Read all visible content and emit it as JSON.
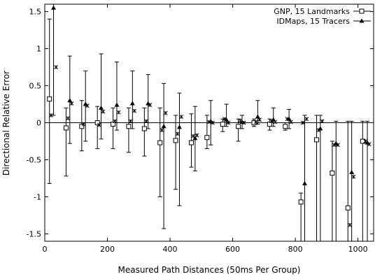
{
  "chart_data": {
    "type": "scatter",
    "title": "",
    "xlabel": "Measured Path Distances (50ms Per Group)",
    "ylabel": "Directional Relative Error",
    "xlim": [
      0,
      1050
    ],
    "ylim": [
      -1.6,
      1.6
    ],
    "x_ticks": [
      0,
      200,
      400,
      600,
      800,
      1000
    ],
    "x_tick_labels": [
      "0",
      "200",
      "400",
      "600",
      "800",
      "1000"
    ],
    "y_ticks": [
      -1.5,
      -1,
      -0.5,
      0,
      0.5,
      1,
      1.5
    ],
    "y_tick_labels": [
      "-1.5",
      "-1",
      "-0.5",
      "0",
      "0.5",
      "1",
      "1.5"
    ],
    "grid": false,
    "legend_position": "top-right",
    "zero_line": true,
    "series": [
      {
        "name": "GNP, 15 Landmarks",
        "marker": "square",
        "points": [
          {
            "x": 15,
            "y": 0.32,
            "lo": -0.82,
            "hi": 1.4
          },
          {
            "x": 68,
            "y": -0.07,
            "lo": -0.72,
            "hi": 0.2
          },
          {
            "x": 118,
            "y": -0.05,
            "lo": -0.38,
            "hi": 0.3
          },
          {
            "x": 168,
            "y": 0.0,
            "lo": -0.35,
            "hi": 0.22
          },
          {
            "x": 218,
            "y": -0.02,
            "lo": -0.35,
            "hi": 0.2
          },
          {
            "x": 268,
            "y": -0.05,
            "lo": -0.4,
            "hi": 0.2
          },
          {
            "x": 318,
            "y": -0.08,
            "lo": -0.45,
            "hi": 0.2
          },
          {
            "x": 368,
            "y": -0.27,
            "lo": -1.0,
            "hi": 0.2
          },
          {
            "x": 418,
            "y": -0.24,
            "lo": -0.9,
            "hi": 0.1
          },
          {
            "x": 468,
            "y": -0.27,
            "lo": -0.6,
            "hi": 0.12
          },
          {
            "x": 518,
            "y": -0.2,
            "lo": -0.35,
            "hi": 0.1
          },
          {
            "x": 568,
            "y": -0.02,
            "lo": -0.12,
            "hi": 0.05
          },
          {
            "x": 618,
            "y": -0.05,
            "lo": -0.25,
            "hi": 0.05
          },
          {
            "x": 668,
            "y": 0.0,
            "lo": -0.05,
            "hi": 0.05
          },
          {
            "x": 718,
            "y": -0.02,
            "lo": -0.1,
            "hi": 0.05
          },
          {
            "x": 768,
            "y": -0.05,
            "lo": -0.1,
            "hi": 0.0
          },
          {
            "x": 818,
            "y": -1.07,
            "lo": -1.6,
            "hi": -0.95
          },
          {
            "x": 868,
            "y": -0.23,
            "lo": -1.6,
            "hi": 0.1
          },
          {
            "x": 918,
            "y": -0.68,
            "lo": -1.6,
            "hi": -0.25
          },
          {
            "x": 968,
            "y": -1.15,
            "lo": -1.6,
            "hi": 0.02
          },
          {
            "x": 1015,
            "y": -0.25,
            "lo": -1.6,
            "hi": 0.02
          }
        ]
      },
      {
        "name": "IDMaps, 15 Tracers",
        "marker": "triangle",
        "points": [
          {
            "x": 28,
            "y": 1.55,
            "lo": 0.1,
            "hi": 1.6
          },
          {
            "x": 80,
            "y": 0.3,
            "lo": -0.28,
            "hi": 0.9
          },
          {
            "x": 130,
            "y": 0.25,
            "lo": -0.25,
            "hi": 0.7
          },
          {
            "x": 180,
            "y": 0.2,
            "lo": -0.22,
            "hi": 0.93
          },
          {
            "x": 230,
            "y": 0.24,
            "lo": -0.1,
            "hi": 0.82
          },
          {
            "x": 280,
            "y": 0.26,
            "lo": -0.08,
            "hi": 0.7
          },
          {
            "x": 330,
            "y": 0.26,
            "lo": -0.08,
            "hi": 0.65
          },
          {
            "x": 380,
            "y": -0.05,
            "lo": -1.43,
            "hi": 0.53
          },
          {
            "x": 430,
            "y": -0.06,
            "lo": -1.12,
            "hi": 0.4
          },
          {
            "x": 480,
            "y": -0.21,
            "lo": -0.65,
            "hi": 0.22
          },
          {
            "x": 530,
            "y": 0.02,
            "lo": -0.3,
            "hi": 0.3
          },
          {
            "x": 580,
            "y": 0.04,
            "lo": -0.05,
            "hi": 0.25
          },
          {
            "x": 630,
            "y": 0.01,
            "lo": -0.08,
            "hi": 0.1
          },
          {
            "x": 680,
            "y": 0.08,
            "lo": -0.02,
            "hi": 0.3
          },
          {
            "x": 730,
            "y": 0.04,
            "lo": -0.05,
            "hi": 0.2
          },
          {
            "x": 780,
            "y": 0.05,
            "lo": -0.08,
            "hi": 0.18
          },
          {
            "x": 830,
            "y": -0.82,
            "lo": -1.6,
            "hi": 0.1
          },
          {
            "x": 880,
            "y": -0.08,
            "lo": -1.6,
            "hi": 0.1
          },
          {
            "x": 930,
            "y": -0.28,
            "lo": -1.6,
            "hi": 0.02
          },
          {
            "x": 980,
            "y": -0.67,
            "lo": -1.6,
            "hi": 0.02
          },
          {
            "x": 1030,
            "y": -0.27,
            "lo": -1.6,
            "hi": 0.02
          }
        ]
      }
    ],
    "median_markers": [
      {
        "x": 20,
        "y": 0.1
      },
      {
        "x": 36,
        "y": 0.75
      },
      {
        "x": 74,
        "y": 0.06
      },
      {
        "x": 86,
        "y": 0.26
      },
      {
        "x": 124,
        "y": -0.02
      },
      {
        "x": 136,
        "y": 0.23
      },
      {
        "x": 174,
        "y": -0.03
      },
      {
        "x": 186,
        "y": 0.15
      },
      {
        "x": 224,
        "y": 0.02
      },
      {
        "x": 236,
        "y": 0.14
      },
      {
        "x": 274,
        "y": 0.02
      },
      {
        "x": 286,
        "y": 0.16
      },
      {
        "x": 324,
        "y": 0.02
      },
      {
        "x": 336,
        "y": 0.24
      },
      {
        "x": 374,
        "y": -0.1
      },
      {
        "x": 386,
        "y": 0.13
      },
      {
        "x": 424,
        "y": -0.15
      },
      {
        "x": 436,
        "y": 0.08
      },
      {
        "x": 474,
        "y": -0.18
      },
      {
        "x": 486,
        "y": -0.17
      },
      {
        "x": 524,
        "y": 0.01
      },
      {
        "x": 536,
        "y": 0.0
      },
      {
        "x": 574,
        "y": 0.05
      },
      {
        "x": 586,
        "y": 0.0
      },
      {
        "x": 624,
        "y": 0.03
      },
      {
        "x": 636,
        "y": 0.0
      },
      {
        "x": 674,
        "y": 0.01
      },
      {
        "x": 686,
        "y": 0.04
      },
      {
        "x": 724,
        "y": 0.02
      },
      {
        "x": 736,
        "y": 0.01
      },
      {
        "x": 774,
        "y": 0.05
      },
      {
        "x": 786,
        "y": 0.01
      },
      {
        "x": 824,
        "y": 0.0
      },
      {
        "x": 836,
        "y": 0.05
      },
      {
        "x": 874,
        "y": -0.1
      },
      {
        "x": 886,
        "y": 0.02
      },
      {
        "x": 924,
        "y": -0.3
      },
      {
        "x": 936,
        "y": -0.3
      },
      {
        "x": 974,
        "y": -1.38
      },
      {
        "x": 986,
        "y": -0.73
      },
      {
        "x": 1024,
        "y": -0.25
      },
      {
        "x": 1036,
        "y": -0.29
      }
    ]
  }
}
